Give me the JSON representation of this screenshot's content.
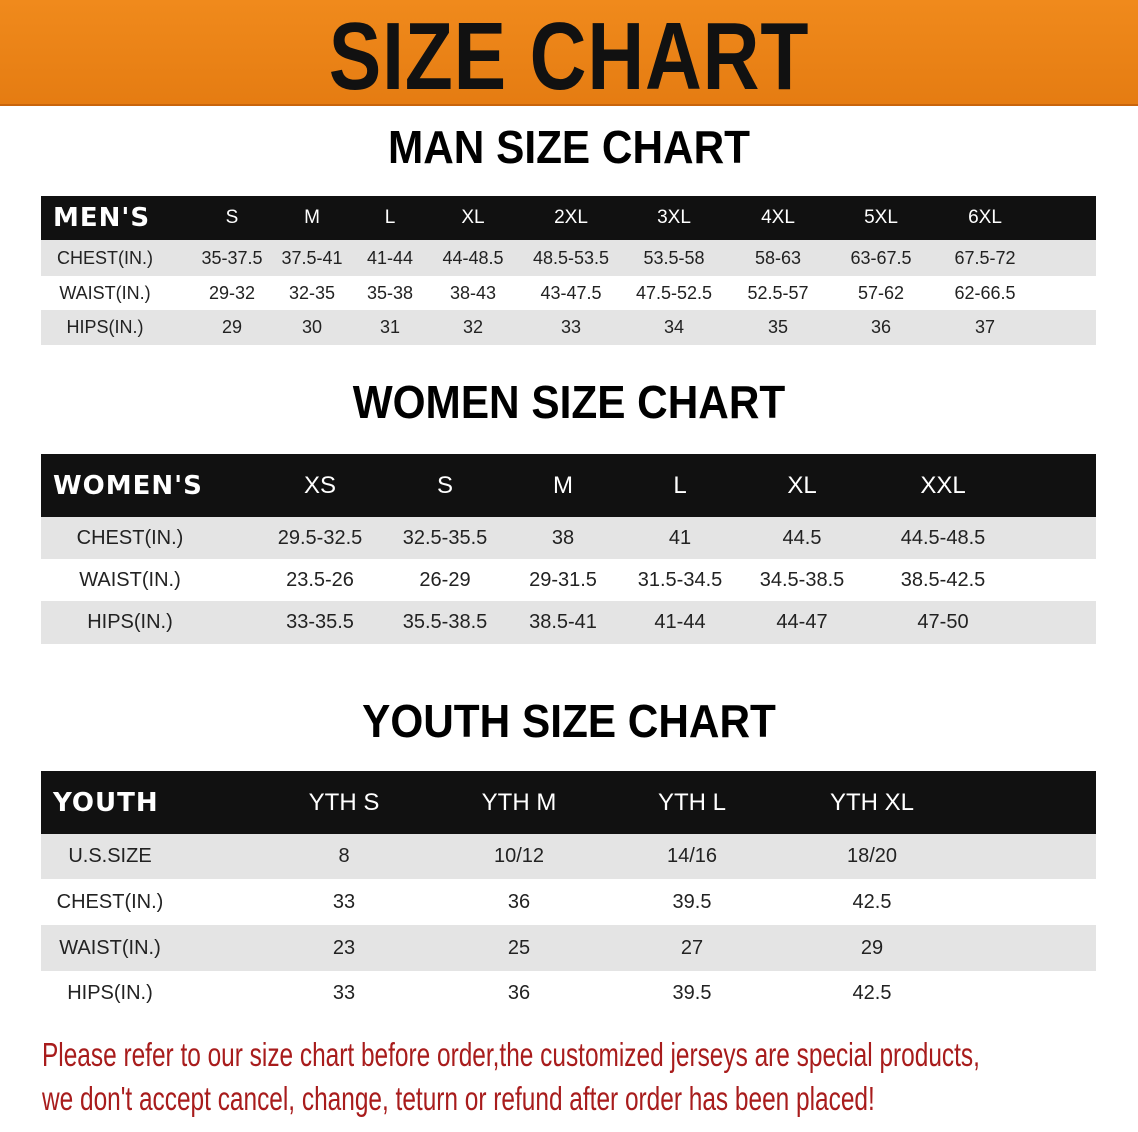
{
  "banner": {
    "title": "SIZE CHART",
    "color": "#ec8418"
  },
  "men": {
    "title": "MAN SIZE CHART",
    "header": [
      "MEN'S",
      "S",
      "M",
      "L",
      "XL",
      "2XL",
      "3XL",
      "4XL",
      "5XL",
      "6XL"
    ],
    "rows": [
      [
        "CHEST(IN.)",
        "35-37.5",
        "37.5-41",
        "41-44",
        "44-48.5",
        "48.5-53.5",
        "53.5-58",
        "58-63",
        "63-67.5",
        "67.5-72"
      ],
      [
        "WAIST(IN.)",
        "29-32",
        "32-35",
        "35-38",
        "38-43",
        "43-47.5",
        "47.5-52.5",
        "52.5-57",
        "57-62",
        "62-66.5"
      ],
      [
        "HIPS(IN.)",
        "29",
        "30",
        "31",
        "32",
        "33",
        "34",
        "35",
        "36",
        "37"
      ]
    ]
  },
  "women": {
    "title": "WOMEN SIZE CHART",
    "header": [
      "WOMEN'S",
      "XS",
      "S",
      "M",
      "L",
      "XL",
      "XXL"
    ],
    "rows": [
      [
        "CHEST(IN.)",
        "29.5-32.5",
        "32.5-35.5",
        "38",
        "41",
        "44.5",
        "44.5-48.5"
      ],
      [
        "WAIST(IN.)",
        "23.5-26",
        "26-29",
        "29-31.5",
        "31.5-34.5",
        "34.5-38.5",
        "38.5-42.5"
      ],
      [
        "HIPS(IN.)",
        "33-35.5",
        "35.5-38.5",
        "38.5-41",
        "41-44",
        "44-47",
        "47-50"
      ]
    ]
  },
  "youth": {
    "title": "YOUTH SIZE CHART",
    "header": [
      "YOUTH",
      "YTH S",
      "YTH M",
      "YTH L",
      "YTH XL"
    ],
    "rows": [
      [
        "U.S.SIZE",
        "8",
        "10/12",
        "14/16",
        "18/20"
      ],
      [
        "CHEST(IN.)",
        "33",
        "36",
        "39.5",
        "42.5"
      ],
      [
        "WAIST(IN.)",
        "23",
        "25",
        "27",
        "29"
      ],
      [
        "HIPS(IN.)",
        "33",
        "36",
        "39.5",
        "42.5"
      ]
    ]
  },
  "notice": {
    "line1": "Please refer to our size chart before order,the customized jerseys are special products,",
    "line2": "we don't accept cancel, change, teturn or refund after order has been placed!",
    "color": "#a81c1c"
  }
}
